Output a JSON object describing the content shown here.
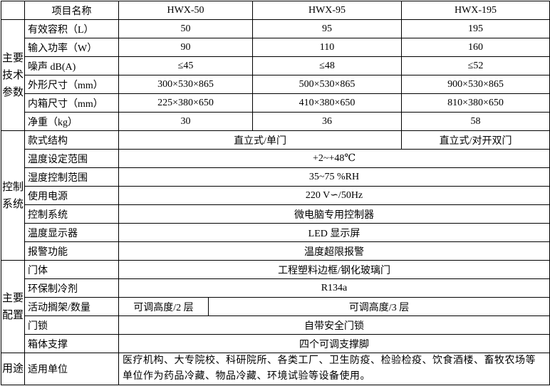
{
  "header": {
    "item": "项目名称",
    "models": [
      "HWX-50",
      "HWX-95",
      "HWX-195"
    ]
  },
  "tech": {
    "category": "主要技术参数",
    "rows": [
      {
        "label": "有效容积（L）",
        "values": [
          "50",
          "95",
          "195"
        ]
      },
      {
        "label": "输入功率（W）",
        "values": [
          "90",
          "110",
          "160"
        ]
      },
      {
        "label": "噪声 dB(A)",
        "values": [
          "≤45",
          "≤48",
          "≤52"
        ]
      },
      {
        "label": "外形尺寸（mm）",
        "values": [
          "300×530×865",
          "500×530×865",
          "900×530×865"
        ]
      },
      {
        "label": "内箱尺寸（mm）",
        "values": [
          "225×380×650",
          "410×380×650",
          "810×380×650"
        ]
      },
      {
        "label": "净重（kg）",
        "values": [
          "30",
          "36",
          "58"
        ]
      }
    ]
  },
  "control": {
    "category": "控制系统",
    "style": {
      "label": "款式结构",
      "single": "直立式/单门",
      "double": "直立式/对开双门"
    },
    "rows": [
      {
        "label": "温度设定范围",
        "value": "+2~+48℃"
      },
      {
        "label": "湿度控制范围",
        "value": "35~75 %RH"
      },
      {
        "label": "使用电源",
        "value": "220 V∽/50Hz"
      },
      {
        "label": "控制系统",
        "value": "微电脑专用控制器"
      },
      {
        "label": "温度显示器",
        "value": "LED 显示屏"
      },
      {
        "label": "报警功能",
        "value": "温度超限报警"
      }
    ]
  },
  "config": {
    "category": "主要配置",
    "door": {
      "label": "门体",
      "value": "工程塑料边框/钢化玻璃门"
    },
    "refrigerant": {
      "label": "环保制冷剂",
      "value": "R134a"
    },
    "shelf": {
      "label": "活动搁架/数量",
      "small": "可调高度/2 层",
      "large": "可调高度/3 层"
    },
    "lock": {
      "label": "门锁",
      "value": "自带安全门锁"
    },
    "support": {
      "label": "箱体支撑",
      "value": "四个可调支撑脚"
    }
  },
  "usage": {
    "category": "用途",
    "label": "适用单位",
    "value": "医疗机构、大专院校、科研院所、各类工厂、卫生防疫、检验检疫、饮食酒楼、畜牧农场等单位作为药品冷藏、物品冷藏、环境试验等设备使用。"
  }
}
